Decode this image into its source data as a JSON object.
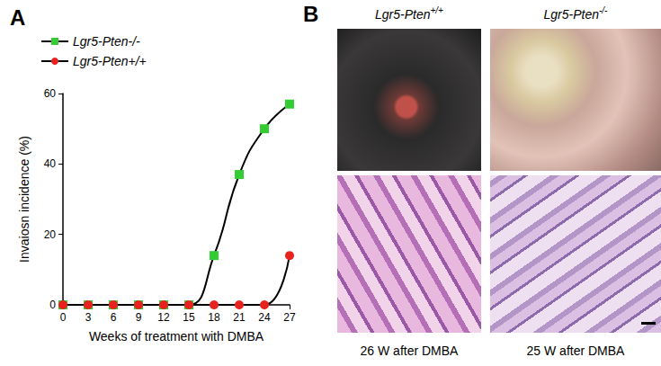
{
  "chart_data": {
    "type": "line",
    "title": "A",
    "x": [
      0,
      3,
      6,
      9,
      12,
      15,
      18,
      21,
      24,
      27
    ],
    "xlabel": "Weeks of treatment with DMBA",
    "ylabel": "Invaiosn incidence (%)",
    "xlim": [
      0,
      27
    ],
    "xticks": [
      0,
      3,
      6,
      9,
      12,
      15,
      18,
      21,
      24,
      27
    ],
    "ylim": [
      0,
      60
    ],
    "yticks": [
      0,
      20,
      40,
      60
    ],
    "grid": false,
    "legend": "upper left",
    "series": [
      {
        "name": "Lgr5-Pten-/-",
        "color": "#33cc33",
        "marker": "square",
        "line_style": "solid",
        "values": [
          0,
          0,
          0,
          0,
          0,
          0,
          14,
          37,
          50,
          57
        ]
      },
      {
        "name": "Lgr5-Pten+/+",
        "color": "#e8221e",
        "marker": "circle",
        "line_style": "solid",
        "values": [
          0,
          0,
          0,
          0,
          0,
          0,
          0,
          0,
          0,
          14
        ]
      }
    ]
  },
  "panel_b": {
    "label": "B",
    "columns": [
      {
        "genotype": "Lgr5-Pten+/+",
        "caption": "26 W after DMBA"
      },
      {
        "genotype": "Lgr5-Pten-/-",
        "caption": "25 W after DMBA"
      }
    ]
  }
}
